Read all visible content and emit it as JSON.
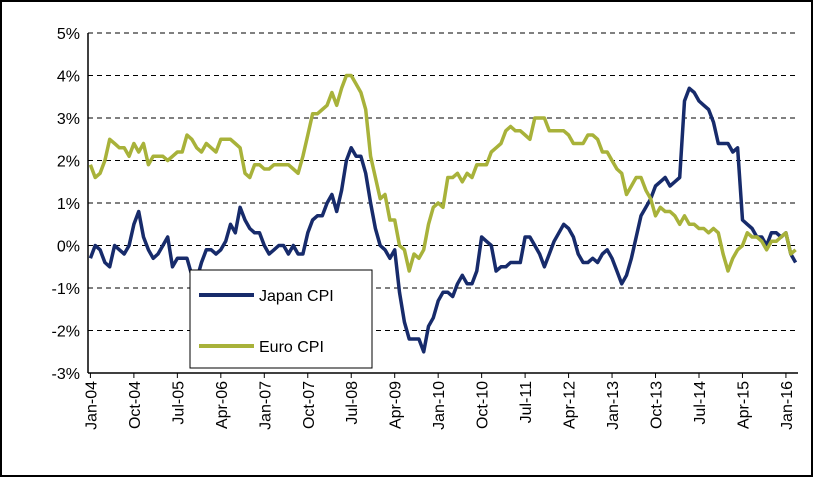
{
  "chart_data": {
    "type": "line",
    "categories": [
      "Jan-04",
      null,
      null,
      null,
      null,
      null,
      null,
      null,
      null,
      "Oct-04",
      null,
      null,
      null,
      null,
      null,
      null,
      null,
      null,
      "Jul-05",
      null,
      null,
      null,
      null,
      null,
      null,
      null,
      null,
      "Apr-06",
      null,
      null,
      null,
      null,
      null,
      null,
      null,
      null,
      "Jan-07",
      null,
      null,
      null,
      null,
      null,
      null,
      null,
      null,
      "Oct-07",
      null,
      null,
      null,
      null,
      null,
      null,
      null,
      null,
      "Jul-08",
      null,
      null,
      null,
      null,
      null,
      null,
      null,
      null,
      "Apr-09",
      null,
      null,
      null,
      null,
      null,
      null,
      null,
      null,
      "Jan-10",
      null,
      null,
      null,
      null,
      null,
      null,
      null,
      null,
      "Oct-10",
      null,
      null,
      null,
      null,
      null,
      null,
      null,
      null,
      "Jul-11",
      null,
      null,
      null,
      null,
      null,
      null,
      null,
      null,
      "Apr-12",
      null,
      null,
      null,
      null,
      null,
      null,
      null,
      null,
      "Jan-13",
      null,
      null,
      null,
      null,
      null,
      null,
      null,
      null,
      "Oct-13",
      null,
      null,
      null,
      null,
      null,
      null,
      null,
      null,
      "Jul-14",
      null,
      null,
      null,
      null,
      null,
      null,
      null,
      null,
      "Apr-15",
      null,
      null,
      null,
      null,
      null,
      null,
      null,
      null,
      "Jan-16",
      null,
      null
    ],
    "series": [
      {
        "name": "Japan CPI",
        "color": "#172b6b",
        "values": [
          -0.3,
          0,
          -0.1,
          -0.4,
          -0.5,
          0,
          -0.1,
          -0.2,
          0,
          0.5,
          0.8,
          0.2,
          -0.1,
          -0.3,
          -0.2,
          0,
          0.2,
          -0.5,
          -0.3,
          -0.3,
          -0.3,
          -0.7,
          -0.8,
          -0.4,
          -0.1,
          -0.1,
          -0.2,
          -0.1,
          0.1,
          0.5,
          0.3,
          0.9,
          0.6,
          0.4,
          0.3,
          0.3,
          0,
          -0.2,
          -0.1,
          0,
          0,
          -0.2,
          0,
          -0.2,
          -0.2,
          0.3,
          0.6,
          0.7,
          0.7,
          1.0,
          1.2,
          0.8,
          1.3,
          2.0,
          2.3,
          2.1,
          2.1,
          1.7,
          1.0,
          0.4,
          0,
          -0.1,
          -0.3,
          -0.1,
          -1.1,
          -1.8,
          -2.2,
          -2.2,
          -2.2,
          -2.5,
          -1.9,
          -1.7,
          -1.3,
          -1.1,
          -1.1,
          -1.2,
          -0.9,
          -0.7,
          -0.9,
          -0.9,
          -0.6,
          0.2,
          0.1,
          0,
          -0.6,
          -0.5,
          -0.5,
          -0.4,
          -0.4,
          -0.4,
          0.2,
          0.2,
          0,
          -0.2,
          -0.5,
          -0.2,
          0.1,
          0.3,
          0.5,
          0.4,
          0.2,
          -0.2,
          -0.4,
          -0.4,
          -0.3,
          -0.4,
          -0.2,
          -0.1,
          -0.3,
          -0.6,
          -0.9,
          -0.7,
          -0.3,
          0.2,
          0.7,
          0.9,
          1.1,
          1.4,
          1.5,
          1.6,
          1.4,
          1.5,
          1.6,
          3.4,
          3.7,
          3.6,
          3.4,
          3.3,
          3.2,
          2.9,
          2.4,
          2.4,
          2.4,
          2.2,
          2.3,
          0.6,
          0.5,
          0.4,
          0.2,
          0.2,
          0,
          0.3,
          0.3,
          0.2,
          0.3,
          -0.2,
          -0.4
        ]
      },
      {
        "name": "Euro CPI",
        "color": "#a8b23a",
        "values": [
          1.9,
          1.6,
          1.7,
          2.0,
          2.5,
          2.4,
          2.3,
          2.3,
          2.1,
          2.4,
          2.2,
          2.4,
          1.9,
          2.1,
          2.1,
          2.1,
          2.0,
          2.1,
          2.2,
          2.2,
          2.6,
          2.5,
          2.3,
          2.2,
          2.4,
          2.3,
          2.2,
          2.5,
          2.5,
          2.5,
          2.4,
          2.3,
          1.7,
          1.6,
          1.9,
          1.9,
          1.8,
          1.8,
          1.9,
          1.9,
          1.9,
          1.9,
          1.8,
          1.7,
          2.1,
          2.6,
          3.1,
          3.1,
          3.2,
          3.3,
          3.6,
          3.3,
          3.7,
          4.0,
          4.0,
          3.8,
          3.6,
          3.2,
          2.1,
          1.6,
          1.1,
          1.2,
          0.6,
          0.6,
          0.0,
          -0.1,
          -0.6,
          -0.2,
          -0.3,
          -0.1,
          0.5,
          0.9,
          1.0,
          0.9,
          1.6,
          1.6,
          1.7,
          1.5,
          1.7,
          1.6,
          1.9,
          1.9,
          1.9,
          2.2,
          2.3,
          2.4,
          2.7,
          2.8,
          2.7,
          2.7,
          2.6,
          2.5,
          3.0,
          3.0,
          3.0,
          2.7,
          2.7,
          2.7,
          2.7,
          2.6,
          2.4,
          2.4,
          2.4,
          2.6,
          2.6,
          2.5,
          2.2,
          2.2,
          2.0,
          1.8,
          1.7,
          1.2,
          1.4,
          1.6,
          1.6,
          1.3,
          1.1,
          0.7,
          0.9,
          0.8,
          0.8,
          0.7,
          0.5,
          0.7,
          0.5,
          0.5,
          0.4,
          0.4,
          0.3,
          0.4,
          0.3,
          -0.2,
          -0.6,
          -0.3,
          -0.1,
          0.0,
          0.3,
          0.2,
          0.2,
          0.1,
          -0.1,
          0.1,
          0.1,
          0.2,
          0.3,
          -0.2,
          -0.1
        ]
      }
    ],
    "ylim": [
      -3,
      5
    ],
    "yticks": [
      {
        "value": -3,
        "label": "-3%"
      },
      {
        "value": -2,
        "label": "-2%"
      },
      {
        "value": -1,
        "label": "-1%"
      },
      {
        "value": 0,
        "label": "0%"
      },
      {
        "value": 1,
        "label": "1%"
      },
      {
        "value": 2,
        "label": "2%"
      },
      {
        "value": 3,
        "label": "3%"
      },
      {
        "value": 4,
        "label": "4%"
      },
      {
        "value": 5,
        "label": "5%"
      }
    ],
    "grid": true,
    "legend": "inside"
  }
}
